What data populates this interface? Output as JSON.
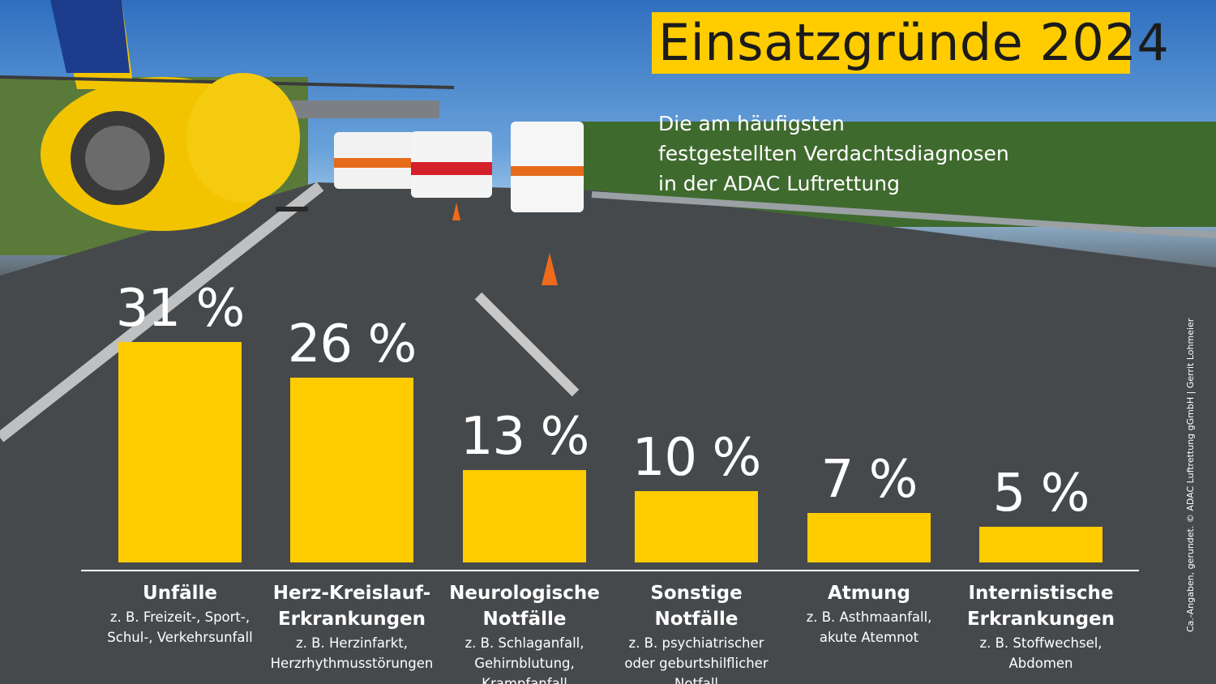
{
  "title": "Einsatzgründe 2024",
  "subtitle": {
    "line1": "Die am häufigsten",
    "line2": "festgestellten Verdachtsdiagnosen",
    "line3": "in der ADAC Luftrettung"
  },
  "credit": "Ca.-Angaben, gerundet. © ADAC Luftrettung gGmbH | Gerrit Lohmeier",
  "colors": {
    "bar": "#ffcc00",
    "text": "#ffffff",
    "title_bg": "#ffcc00",
    "title_text": "#1b1b1b"
  },
  "chart_data": {
    "type": "bar",
    "title": "Einsatzgründe 2024",
    "ylim": [
      0,
      31
    ],
    "unit": "%",
    "categories": [
      {
        "name": "Unfälle",
        "name2": "",
        "example1": "z. B. Freizeit-, Sport-,",
        "example2": "Schul-, Verkehrsunfall",
        "example3": "",
        "value": 31,
        "label": "31 %"
      },
      {
        "name": "Herz-Kreislauf-",
        "name2": "Erkrankungen",
        "example1": "z. B. Herzinfarkt,",
        "example2": "Herzrhythmusstörungen",
        "example3": "",
        "value": 26,
        "label": "26 %"
      },
      {
        "name": "Neurologische",
        "name2": "Notfälle",
        "example1": "z. B. Schlaganfall,",
        "example2": "Gehirnblutung,",
        "example3": "Krampfanfall",
        "value": 13,
        "label": "13 %"
      },
      {
        "name": "Sonstige",
        "name2": "Notfälle",
        "example1": "z. B. psychiatrischer",
        "example2": "oder geburtshilflicher",
        "example3": "Notfall",
        "value": 10,
        "label": "10 %"
      },
      {
        "name": "Atmung",
        "name2": "",
        "example1": "z. B. Asthmaanfall,",
        "example2": "akute Atemnot",
        "example3": "",
        "value": 7,
        "label": "7 %"
      },
      {
        "name": "Internistische",
        "name2": "Erkrankungen",
        "example1": "z. B. Stoffwechsel,",
        "example2": "Abdomen",
        "example3": "",
        "value": 5,
        "label": "5 %"
      }
    ]
  }
}
